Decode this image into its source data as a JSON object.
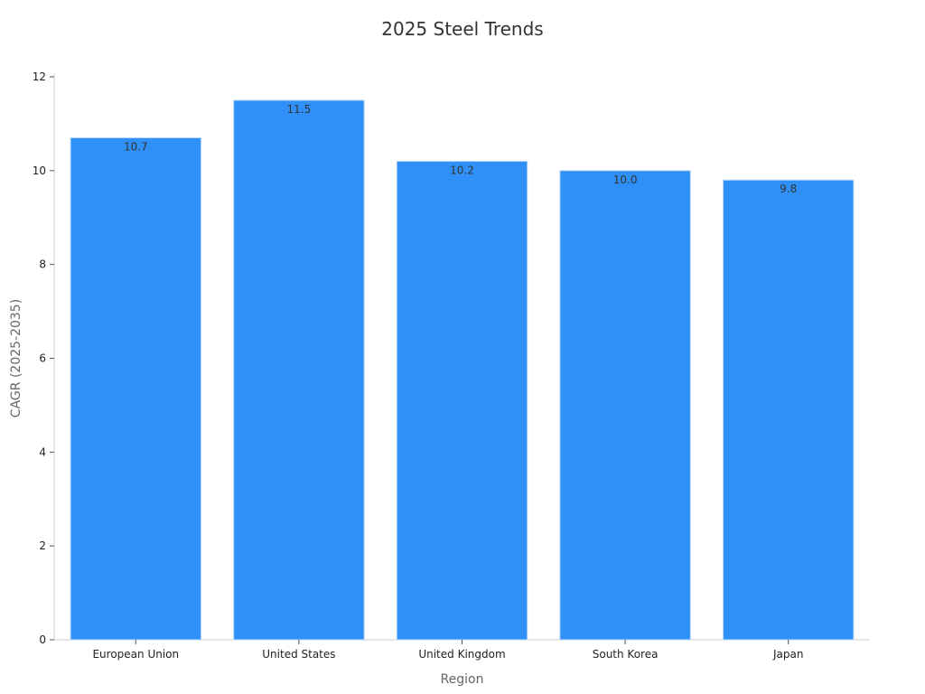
{
  "chart_data": {
    "type": "bar",
    "title": "2025 Steel Trends",
    "xlabel": "Region",
    "ylabel": "CAGR (2025-2035)",
    "categories": [
      "European Union",
      "United States",
      "United Kingdom",
      "South Korea",
      "Japan"
    ],
    "values": [
      10.7,
      11.5,
      10.2,
      10.0,
      9.8
    ],
    "data_labels": [
      "10.7",
      "11.5",
      "10.2",
      "10.0",
      "9.8"
    ],
    "ylim": [
      0,
      12
    ],
    "yticks": [
      0,
      2,
      4,
      6,
      8,
      10,
      12
    ],
    "grid": false,
    "legend": "none",
    "bar_color": "#2f91f8"
  }
}
